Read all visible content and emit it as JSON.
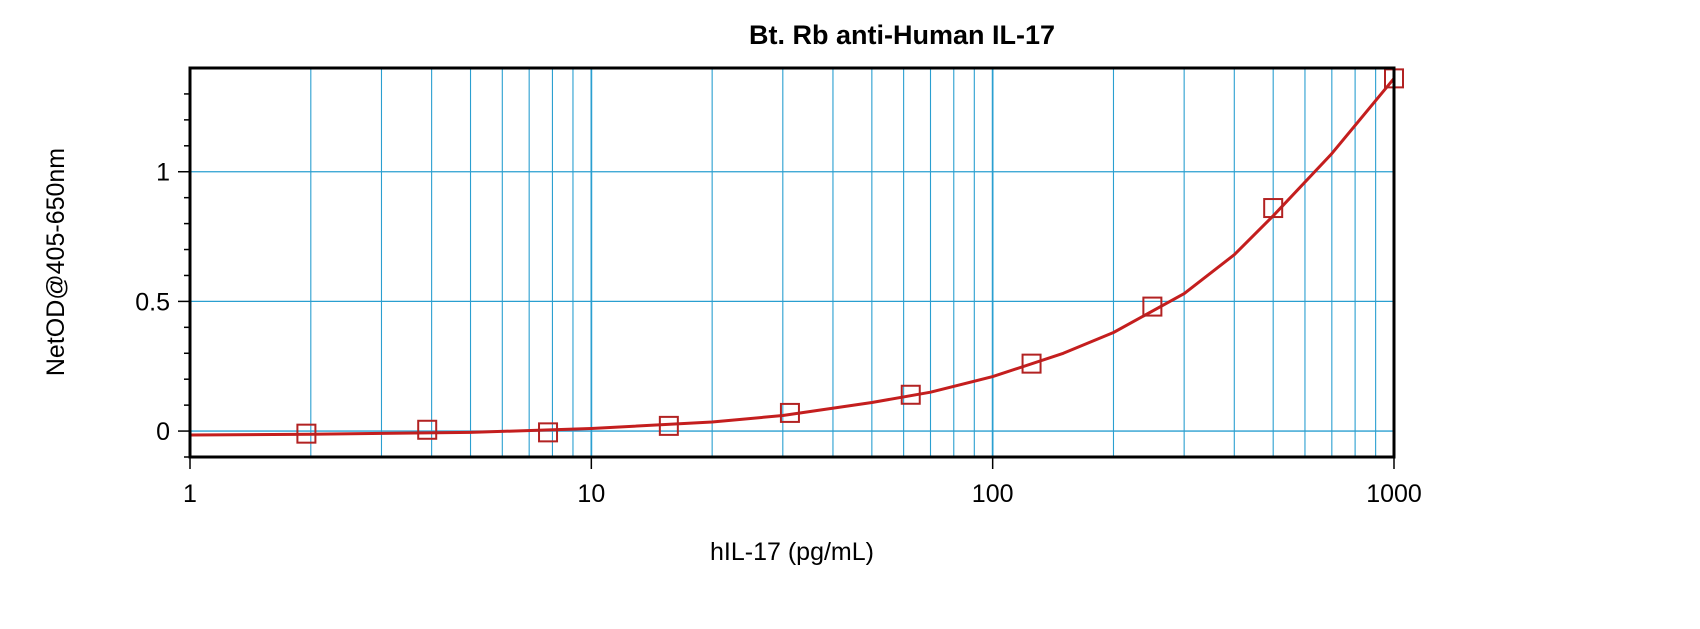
{
  "chart_data": {
    "type": "scatter",
    "title": "Bt. Rb anti-Human IL-17",
    "xlabel": "hIL-17 (pg/mL)",
    "ylabel": "NetOD@405-650nm",
    "x_scale": "log",
    "xlim": [
      1,
      1000
    ],
    "ylim": [
      -0.1,
      1.4
    ],
    "x_ticks": [
      1,
      10,
      100,
      1000
    ],
    "x_tick_labels": [
      "1",
      "10",
      "100",
      "1000"
    ],
    "y_ticks": [
      0,
      0.5,
      1
    ],
    "y_tick_labels": [
      "0",
      "0.5",
      "1"
    ],
    "grid": true,
    "series": [
      {
        "x": [
          1.95,
          3.9,
          7.8,
          15.6,
          31.25,
          62.5,
          125,
          250,
          500,
          1000
        ],
        "y": [
          -0.01,
          0.005,
          -0.005,
          0.02,
          0.07,
          0.14,
          0.26,
          0.48,
          0.86,
          1.36
        ],
        "marker": "square",
        "color": "#b22222"
      }
    ],
    "fit_curve": {
      "x": [
        1,
        2,
        5,
        10,
        20,
        30,
        50,
        70,
        100,
        150,
        200,
        300,
        400,
        500,
        700,
        1000
      ],
      "y": [
        -0.015,
        -0.012,
        -0.005,
        0.01,
        0.035,
        0.06,
        0.11,
        0.15,
        0.21,
        0.3,
        0.38,
        0.53,
        0.68,
        0.83,
        1.07,
        1.36
      ],
      "color": "#c41e1e"
    },
    "grid_color": "#2a9fd0"
  }
}
